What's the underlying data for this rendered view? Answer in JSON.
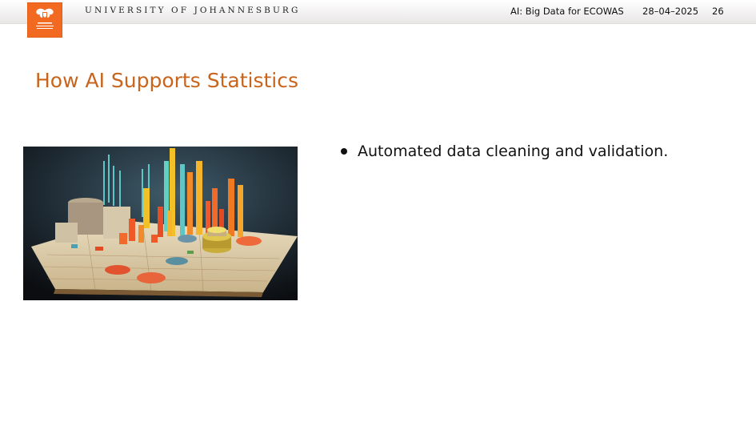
{
  "header": {
    "university": "UNIVERSITY OF JOHANNESBURG",
    "presentation_title": "AI: Big Data for ECOWAS",
    "date": "28–04–2025",
    "page_number": "26"
  },
  "slide": {
    "title": "How AI Supports Statistics",
    "bullets": [
      "Automated data cleaning and validation."
    ]
  },
  "colors": {
    "accent": "#c8641c",
    "logo_orange": "#f26a21"
  }
}
